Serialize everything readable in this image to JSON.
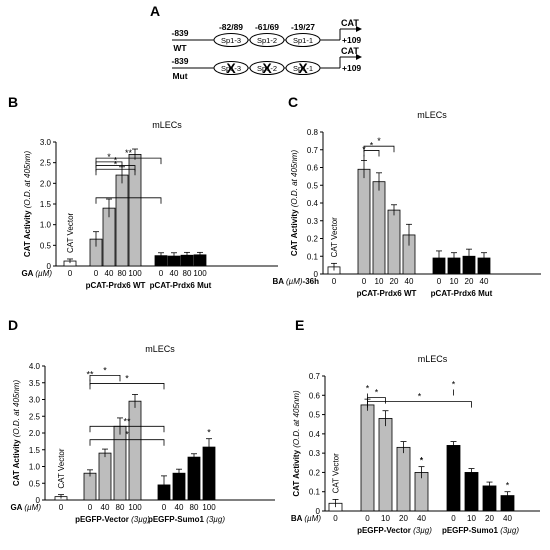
{
  "figure": {
    "panel_labels": [
      "A",
      "B",
      "C",
      "D",
      "E"
    ]
  },
  "panel_a": {
    "rows": [
      {
        "tag": "WT",
        "start": "-839",
        "end": "+109",
        "reporter": "CAT",
        "sites": [
          {
            "name": "Sp1-3",
            "pos": "-82/89"
          },
          {
            "name": "Sp1-2",
            "pos": "-61/69"
          },
          {
            "name": "Sp1-1",
            "pos": "-19/27"
          }
        ]
      },
      {
        "tag": "Mut",
        "start": "-839",
        "end": "+109",
        "reporter": "CAT",
        "sites": [
          {
            "name": "Sp1-3",
            "pos": ""
          },
          {
            "name": "Sp1-2",
            "pos": ""
          },
          {
            "name": "Sp1-1",
            "pos": ""
          }
        ],
        "mutated": true
      }
    ]
  },
  "chart_data": [
    {
      "panel": "B",
      "type": "bar",
      "title": "mLECs",
      "ylabel": "CAT Activity (O.D. at 405nm)",
      "ylim": [
        0,
        3.0
      ],
      "yticks": [
        "0",
        "0.5",
        "1.0",
        "1.5",
        "2.0",
        "2.5",
        "3.0"
      ],
      "xlabel": "GA (µM)",
      "vector_label": "CAT Vector",
      "groups": [
        {
          "name": "",
          "color": "#ffffff",
          "categories": [
            "0"
          ],
          "values": [
            0.12
          ],
          "errors": [
            0.05
          ]
        },
        {
          "name": "pCAT-Prdx6 WT",
          "color": "#bdbdbd",
          "categories": [
            "0",
            "40",
            "80",
            "100"
          ],
          "values": [
            0.65,
            1.4,
            2.2,
            2.7
          ],
          "errors": [
            0.18,
            0.22,
            0.2,
            0.13
          ]
        },
        {
          "name": "pCAT-Prdx6 Mut",
          "color": "#000000",
          "categories": [
            "0",
            "40",
            "80",
            "100"
          ],
          "values": [
            0.25,
            0.24,
            0.26,
            0.27
          ],
          "errors": [
            0.07,
            0.08,
            0.07,
            0.06
          ]
        }
      ],
      "annotations": [
        "**",
        "*",
        "*",
        "*"
      ]
    },
    {
      "panel": "C",
      "type": "bar",
      "title": "mLECs",
      "ylabel": "CAT Activity (O.D. at 405nm)",
      "ylim": [
        0,
        0.8
      ],
      "yticks": [
        "0",
        "0.1",
        "0.2",
        "0.3",
        "0.4",
        "0.5",
        "0.6",
        "0.7",
        "0.8"
      ],
      "xlabel": "BA (µM)-36h",
      "vector_label": "CAT Vector",
      "groups": [
        {
          "name": "",
          "color": "#ffffff",
          "categories": [
            "0"
          ],
          "values": [
            0.04
          ],
          "errors": [
            0.02
          ]
        },
        {
          "name": "pCAT-Prdx6 WT",
          "color": "#bdbdbd",
          "categories": [
            "0",
            "10",
            "20",
            "40"
          ],
          "values": [
            0.59,
            0.52,
            0.36,
            0.22
          ],
          "errors": [
            0.05,
            0.05,
            0.03,
            0.06
          ]
        },
        {
          "name": "pCAT-Prdx6 Mut",
          "color": "#000000",
          "categories": [
            "0",
            "10",
            "20",
            "40"
          ],
          "values": [
            0.09,
            0.09,
            0.1,
            0.09
          ],
          "errors": [
            0.04,
            0.03,
            0.04,
            0.03
          ]
        }
      ],
      "annotations": [
        "*",
        "*",
        "*"
      ]
    },
    {
      "panel": "D",
      "type": "bar",
      "title": "mLECs",
      "ylabel": "CAT Activity (O.D. at 405nm)",
      "ylim": [
        0,
        4.0
      ],
      "yticks": [
        "0",
        "0.5",
        "1.0",
        "1.5",
        "2.0",
        "2.5",
        "3.0",
        "3.5",
        "4.0"
      ],
      "xlabel": "GA (µM)",
      "vector_label": "CAT Vector",
      "groups": [
        {
          "name": "",
          "color": "#ffffff",
          "categories": [
            "0"
          ],
          "values": [
            0.1
          ],
          "errors": [
            0.06
          ]
        },
        {
          "name": "pEGFP-Vector (3µg)",
          "color": "#bdbdbd",
          "categories": [
            "0",
            "40",
            "80",
            "100"
          ],
          "values": [
            0.8,
            1.4,
            2.2,
            2.95
          ],
          "errors": [
            0.1,
            0.12,
            0.25,
            0.2
          ]
        },
        {
          "name": "pEGFP-Sumo1 (3µg)",
          "color": "#000000",
          "categories": [
            "0",
            "40",
            "80",
            "100"
          ],
          "values": [
            0.45,
            0.8,
            1.28,
            1.58
          ],
          "errors": [
            0.27,
            0.12,
            0.1,
            0.25
          ]
        }
      ],
      "annotations": [
        "**",
        "*",
        "*",
        "**",
        "*",
        "*"
      ]
    },
    {
      "panel": "E",
      "type": "bar",
      "title": "mLECs",
      "ylabel": "CAT Activity (O.D. at 405nm)",
      "ylim": [
        0,
        0.7
      ],
      "yticks": [
        "0",
        "0.1",
        "0.2",
        "0.3",
        "0.4",
        "0.5",
        "0.6",
        "0.7"
      ],
      "xlabel": "BA (µM)",
      "vector_label": "CAT Vector",
      "groups": [
        {
          "name": "",
          "color": "#ffffff",
          "categories": [
            "0"
          ],
          "values": [
            0.04
          ],
          "errors": [
            0.02
          ]
        },
        {
          "name": "pEGFP-Vector (3µg)",
          "color": "#bdbdbd",
          "categories": [
            "0",
            "10",
            "20",
            "40"
          ],
          "values": [
            0.55,
            0.48,
            0.33,
            0.2
          ],
          "errors": [
            0.03,
            0.04,
            0.03,
            0.03
          ]
        },
        {
          "name": "pEGFP-Sumo1 (3µg)",
          "color": "#000000",
          "categories": [
            "0",
            "10",
            "20",
            "40"
          ],
          "values": [
            0.34,
            0.2,
            0.13,
            0.08
          ],
          "errors": [
            0.02,
            0.02,
            0.02,
            0.02
          ]
        }
      ],
      "annotations": [
        "*",
        "*",
        "*",
        "*",
        "*",
        "*",
        "*"
      ]
    }
  ]
}
